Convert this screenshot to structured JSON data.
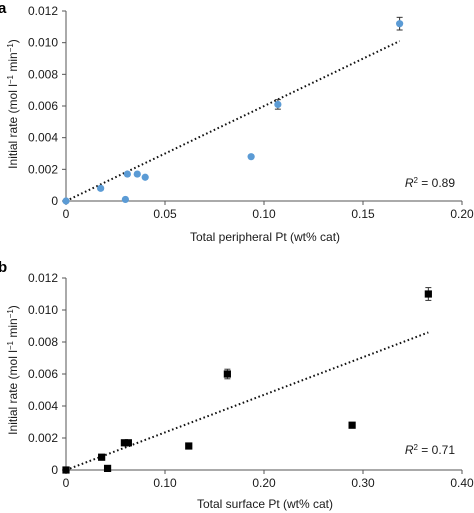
{
  "chart_data": [
    {
      "panel": "a",
      "type": "scatter",
      "xlabel": "Total peripheral Pt (wt% cat)",
      "ylabel": "Initial rate (mol l",
      "ylabel_sup1": "−1",
      "ylabel_mid": " min",
      "ylabel_sup2": "−1",
      "ylabel_end": ")",
      "xlim": [
        0,
        0.2
      ],
      "ylim": [
        0,
        0.012
      ],
      "x_ticks": [
        0,
        0.05,
        0.1,
        0.15,
        0.2
      ],
      "x_tick_labels": [
        "0",
        "0.05",
        "0.10",
        "0.15",
        "0.20"
      ],
      "y_ticks": [
        0,
        0.002,
        0.004,
        0.006,
        0.008,
        0.01,
        0.012
      ],
      "y_tick_labels": [
        "0",
        "0.002",
        "0.004",
        "0.006",
        "0.008",
        "0.010",
        "0.012"
      ],
      "marker": "circle",
      "marker_color": "#5b9bd5",
      "points": [
        {
          "x": 0,
          "y": 0
        },
        {
          "x": 0.0175,
          "y": 0.0008
        },
        {
          "x": 0.03,
          "y": 0.0001
        },
        {
          "x": 0.031,
          "y": 0.0017
        },
        {
          "x": 0.036,
          "y": 0.0017
        },
        {
          "x": 0.04,
          "y": 0.0015
        },
        {
          "x": 0.0935,
          "y": 0.0028
        },
        {
          "x": 0.107,
          "y": 0.0061,
          "err": 0.0003
        },
        {
          "x": 0.1685,
          "y": 0.0112,
          "err": 0.0004
        }
      ],
      "fit": {
        "x": [
          0,
          0.1685
        ],
        "y": [
          0,
          0.0101
        ]
      },
      "r2_label": "R",
      "r2_sup": "2",
      "r2_value": " = 0.89"
    },
    {
      "panel": "b",
      "type": "scatter",
      "xlabel": "Total surface Pt (wt% cat)",
      "ylabel": "Initial rate (mol l",
      "ylabel_sup1": "−1",
      "ylabel_mid": " min",
      "ylabel_sup2": "−1",
      "ylabel_end": ")",
      "xlim": [
        0,
        0.4
      ],
      "ylim": [
        0,
        0.012
      ],
      "x_ticks": [
        0,
        0.1,
        0.2,
        0.3,
        0.4
      ],
      "x_tick_labels": [
        "0",
        "0.10",
        "0.20",
        "0.30",
        "0.40"
      ],
      "y_ticks": [
        0,
        0.002,
        0.004,
        0.006,
        0.008,
        0.01,
        0.012
      ],
      "y_tick_labels": [
        "0",
        "0.002",
        "0.004",
        "0.006",
        "0.008",
        "0.010",
        "0.012"
      ],
      "marker": "square",
      "marker_color": "#000000",
      "points": [
        {
          "x": 0,
          "y": 0
        },
        {
          "x": 0.036,
          "y": 0.0008
        },
        {
          "x": 0.042,
          "y": 0.0001
        },
        {
          "x": 0.059,
          "y": 0.0017
        },
        {
          "x": 0.063,
          "y": 0.0017
        },
        {
          "x": 0.124,
          "y": 0.0015
        },
        {
          "x": 0.163,
          "y": 0.006,
          "err": 0.0003
        },
        {
          "x": 0.289,
          "y": 0.0028
        },
        {
          "x": 0.366,
          "y": 0.011,
          "err": 0.0004
        }
      ],
      "fit": {
        "x": [
          0,
          0.366
        ],
        "y": [
          0,
          0.0086
        ]
      },
      "r2_label": "R",
      "r2_sup": "2",
      "r2_value": " = 0.71"
    }
  ]
}
